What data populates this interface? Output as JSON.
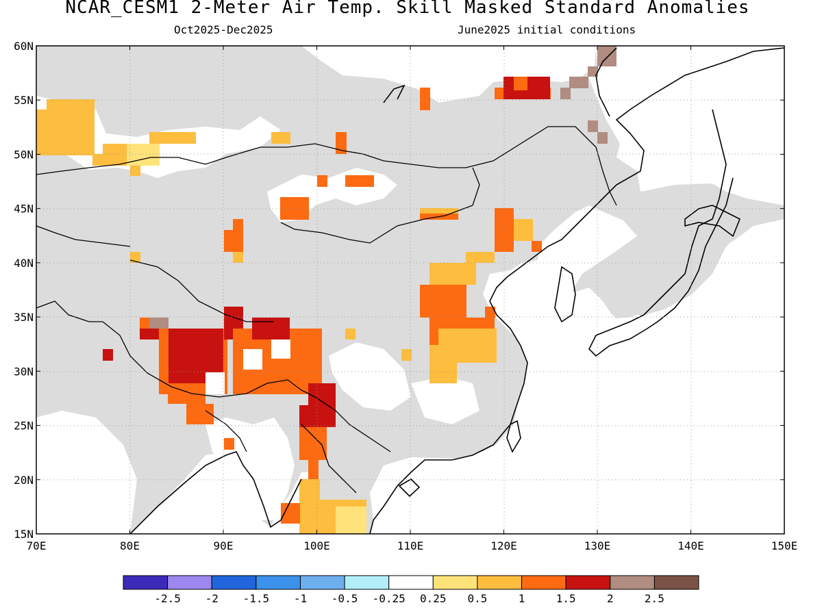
{
  "header": {
    "title": "NCAR_CESM1 2-Meter Air Temp. Skill Masked Standard Anomalies",
    "period": "Oct2025-Dec2025",
    "init": "June2025 initial conditions"
  },
  "map": {
    "lon_range": [
      70,
      150
    ],
    "lat_range": [
      15,
      60
    ],
    "lon_labels": [
      "70E",
      "80E",
      "90E",
      "100E",
      "110E",
      "120E",
      "130E",
      "140E",
      "150E"
    ],
    "lat_labels": [
      "15N",
      "20N",
      "25N",
      "30N",
      "35N",
      "40N",
      "45N",
      "50N",
      "55N",
      "60N"
    ],
    "colors": {
      "masked": "#dcdcdc",
      "near_zero": "#ffffff",
      "anom_0_25_0_5": "#fee37b",
      "anom_0_5_1": "#fdbd3e",
      "anom_1_1_5": "#fc6a12",
      "anom_1_5_2": "#c7120f",
      "anom_2_2_5": "#b08c81",
      "coast": "#000000"
    }
  },
  "colorbar": {
    "colors": [
      "#3c2ab8",
      "#9c88ee",
      "#2065dc",
      "#3c92ea",
      "#6eaff0",
      "#b2eefa",
      "#ffffff",
      "#fee37b",
      "#fdbd3e",
      "#fc6a12",
      "#c7120f",
      "#b08c81",
      "#7a5346"
    ],
    "labels": [
      "-2.5",
      "-2",
      "-1.5",
      "-1",
      "-0.5",
      "-0.25",
      "0.25",
      "0.5",
      "1",
      "1.5",
      "2",
      "2.5"
    ]
  }
}
